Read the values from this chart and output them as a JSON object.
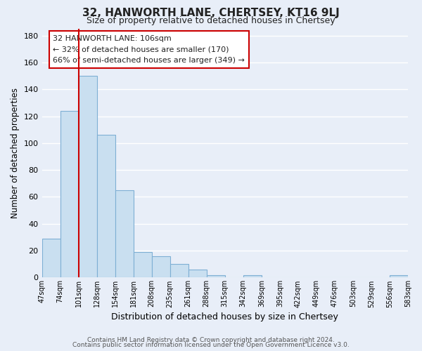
{
  "title": "32, HANWORTH LANE, CHERTSEY, KT16 9LJ",
  "subtitle": "Size of property relative to detached houses in Chertsey",
  "xlabel": "Distribution of detached houses by size in Chertsey",
  "ylabel": "Number of detached properties",
  "bar_values": [
    29,
    124,
    150,
    106,
    65,
    19,
    16,
    10,
    6,
    2,
    0,
    2,
    0,
    0,
    0,
    0,
    0,
    0,
    0,
    2
  ],
  "bar_labels": [
    "47sqm",
    "74sqm",
    "101sqm",
    "128sqm",
    "154sqm",
    "181sqm",
    "208sqm",
    "235sqm",
    "261sqm",
    "288sqm",
    "315sqm",
    "342sqm",
    "369sqm",
    "395sqm",
    "422sqm",
    "449sqm",
    "476sqm",
    "503sqm",
    "529sqm",
    "556sqm",
    "583sqm"
  ],
  "bar_color": "#c9dff0",
  "bar_edge_color": "#7eafd4",
  "vline_x": 2,
  "vline_color": "#cc0000",
  "ylim": [
    0,
    185
  ],
  "yticks": [
    0,
    20,
    40,
    60,
    80,
    100,
    120,
    140,
    160,
    180
  ],
  "annotation_title": "32 HANWORTH LANE: 106sqm",
  "annotation_line1": "← 32% of detached houses are smaller (170)",
  "annotation_line2": "66% of semi-detached houses are larger (349) →",
  "annotation_box_color": "#ffffff",
  "annotation_box_edge": "#cc0000",
  "footer1": "Contains HM Land Registry data © Crown copyright and database right 2024.",
  "footer2": "Contains public sector information licensed under the Open Government Licence v3.0.",
  "background_color": "#e8eef8",
  "grid_color": "#ffffff"
}
